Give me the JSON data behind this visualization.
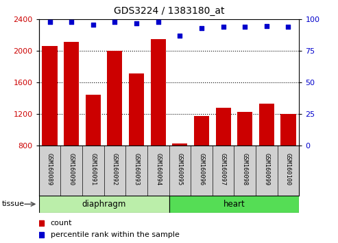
{
  "title": "GDS3224 / 1383180_at",
  "samples": [
    "GSM160089",
    "GSM160090",
    "GSM160091",
    "GSM160092",
    "GSM160093",
    "GSM160094",
    "GSM160095",
    "GSM160096",
    "GSM160097",
    "GSM160098",
    "GSM160099",
    "GSM160100"
  ],
  "counts": [
    2060,
    2120,
    1450,
    2000,
    1720,
    2150,
    830,
    1175,
    1280,
    1230,
    1330,
    1200
  ],
  "percentiles": [
    98,
    98,
    96,
    98,
    97,
    98,
    87,
    93,
    94,
    94,
    95,
    94
  ],
  "ylim_left": [
    800,
    2400
  ],
  "ylim_right": [
    0,
    100
  ],
  "yticks_left": [
    800,
    1200,
    1600,
    2000,
    2400
  ],
  "yticks_right": [
    0,
    25,
    50,
    75,
    100
  ],
  "bar_color": "#cc0000",
  "dot_color": "#0000cc",
  "grid_lines": [
    1200,
    1600,
    2000
  ],
  "tissue_groups": [
    {
      "label": "diaphragm",
      "start": 0,
      "end": 6,
      "color": "#bbeeaa"
    },
    {
      "label": "heart",
      "start": 6,
      "end": 12,
      "color": "#55dd55"
    }
  ],
  "tissue_label": "tissue",
  "legend_count_label": "count",
  "legend_pct_label": "percentile rank within the sample",
  "xticklabel_area_color": "#d0d0d0",
  "plot_bg_color": "#ffffff"
}
